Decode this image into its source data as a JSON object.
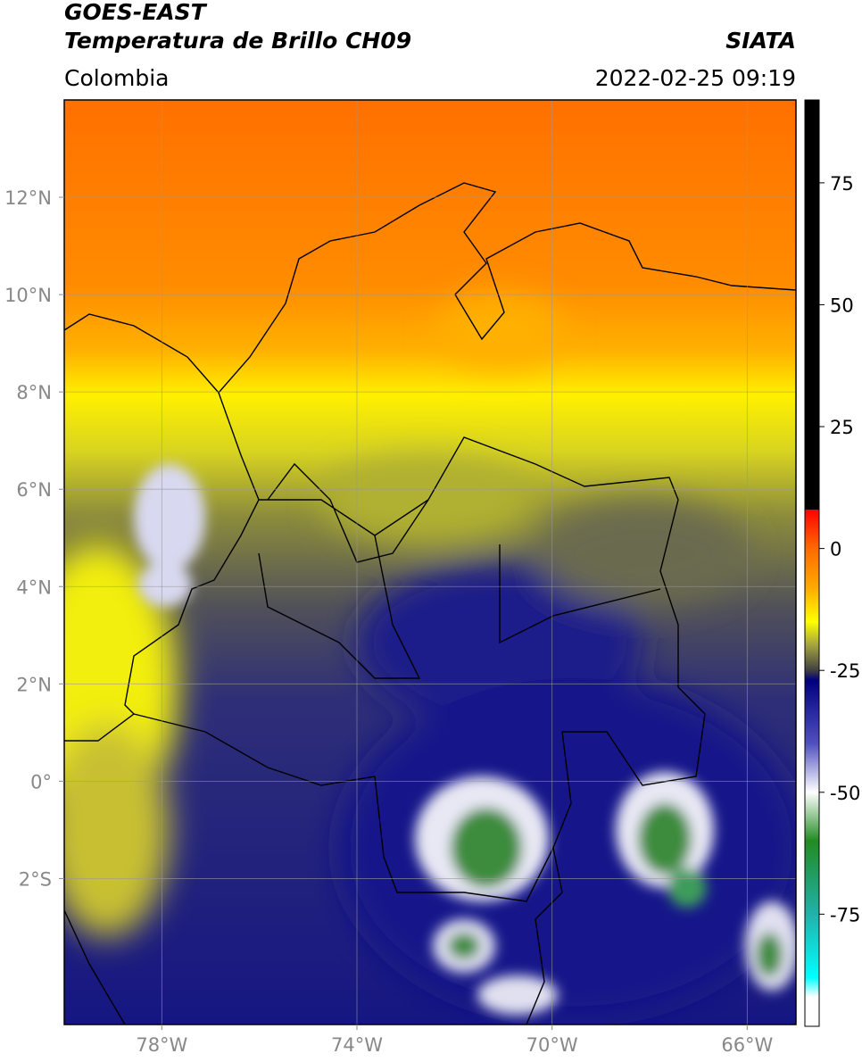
{
  "header": {
    "title": "GOES-EAST",
    "subtitle": "Temperatura de Brillo CH09",
    "source": "SIATA",
    "region": "Colombia",
    "datetime": "2022-02-25 09:19"
  },
  "map": {
    "xlim": [
      -80,
      -65
    ],
    "ylim": [
      -5,
      14
    ],
    "xticks": [
      {
        "value": -78,
        "label": "78°W"
      },
      {
        "value": -74,
        "label": "74°W"
      },
      {
        "value": -70,
        "label": "70°W"
      },
      {
        "value": -66,
        "label": "66°W"
      }
    ],
    "yticks": [
      {
        "value": 12,
        "label": "12°N"
      },
      {
        "value": 10,
        "label": "10°N"
      },
      {
        "value": 8,
        "label": "8°N"
      },
      {
        "value": 6,
        "label": "6°N"
      },
      {
        "value": 4,
        "label": "4°N"
      },
      {
        "value": 2,
        "label": "2°N"
      },
      {
        "value": 0,
        "label": "0°"
      },
      {
        "value": -2,
        "label": "2°S"
      }
    ],
    "grid": true
  },
  "colorbar": {
    "lim": [
      -98,
      92
    ],
    "ticks": [
      75,
      50,
      25,
      0,
      -25,
      -50,
      -75
    ],
    "stops": [
      {
        "value": 92,
        "color": "#000000"
      },
      {
        "value": 8,
        "color": "#000000"
      },
      {
        "value": 8,
        "color": "#ff0000"
      },
      {
        "value": 0,
        "color": "#ff6a00"
      },
      {
        "value": -8,
        "color": "#ffaa00"
      },
      {
        "value": -15,
        "color": "#ffff00"
      },
      {
        "value": -20,
        "color": "#a0a040"
      },
      {
        "value": -25,
        "color": "#404040"
      },
      {
        "value": -27,
        "color": "#000080"
      },
      {
        "value": -40,
        "color": "#5050c0"
      },
      {
        "value": -50,
        "color": "#ffffff"
      },
      {
        "value": -60,
        "color": "#228b22"
      },
      {
        "value": -75,
        "color": "#20b2aa"
      },
      {
        "value": -88,
        "color": "#00ffff"
      },
      {
        "value": -92,
        "color": "#ffffff"
      },
      {
        "value": -98,
        "color": "#ffffff"
      }
    ]
  }
}
